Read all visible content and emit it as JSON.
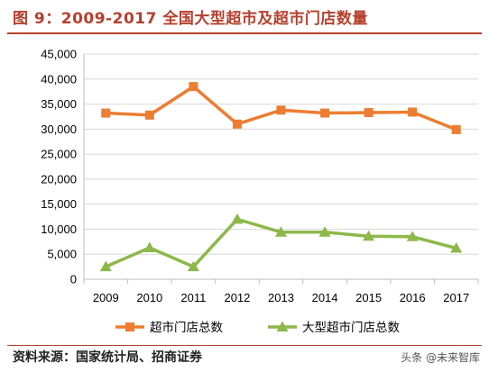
{
  "title": "图 9：2009-2017 全国大型超市及超市门店数量",
  "source": "资料来源：国家统计局、招商证券",
  "watermark": "头条 @未来智库",
  "colors": {
    "series_1": "#ed7d31",
    "series_2": "#8db84a",
    "title": "#b5402d",
    "grid": "#d9d9d9",
    "axis": "#bfbfbf"
  },
  "chart_data": {
    "type": "line",
    "x": [
      "2009",
      "2010",
      "2011",
      "2012",
      "2013",
      "2014",
      "2015",
      "2016",
      "2017"
    ],
    "ylim": [
      0,
      45000
    ],
    "yticks": [
      0,
      5000,
      10000,
      15000,
      20000,
      25000,
      30000,
      35000,
      40000,
      45000
    ],
    "ytick_labels": [
      "0",
      "5,000",
      "10,000",
      "15,000",
      "20,000",
      "25,000",
      "30,000",
      "35,000",
      "40,000",
      "45,000"
    ],
    "grid": "horizontal",
    "legend_position": "bottom",
    "series": [
      {
        "name": "超市门店总数",
        "marker": "square",
        "values": [
          33200,
          32800,
          38500,
          31000,
          33800,
          33200,
          33300,
          33400,
          29900
        ]
      },
      {
        "name": "大型超市门店总数",
        "marker": "triangle",
        "values": [
          2500,
          6300,
          2500,
          12000,
          9400,
          9400,
          8600,
          8500,
          6200
        ]
      }
    ]
  }
}
